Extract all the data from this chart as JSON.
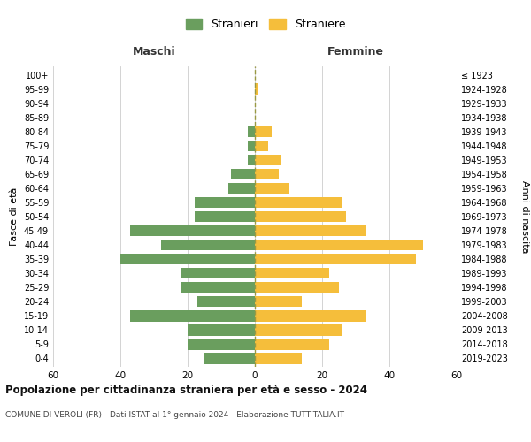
{
  "age_groups": [
    "0-4",
    "5-9",
    "10-14",
    "15-19",
    "20-24",
    "25-29",
    "30-34",
    "35-39",
    "40-44",
    "45-49",
    "50-54",
    "55-59",
    "60-64",
    "65-69",
    "70-74",
    "75-79",
    "80-84",
    "85-89",
    "90-94",
    "95-99",
    "100+"
  ],
  "birth_years": [
    "2019-2023",
    "2014-2018",
    "2009-2013",
    "2004-2008",
    "1999-2003",
    "1994-1998",
    "1989-1993",
    "1984-1988",
    "1979-1983",
    "1974-1978",
    "1969-1973",
    "1964-1968",
    "1959-1963",
    "1954-1958",
    "1949-1953",
    "1944-1948",
    "1939-1943",
    "1934-1938",
    "1929-1933",
    "1924-1928",
    "≤ 1923"
  ],
  "maschi": [
    15,
    20,
    20,
    37,
    17,
    22,
    22,
    40,
    28,
    37,
    18,
    18,
    8,
    7,
    2,
    2,
    2,
    0,
    0,
    0,
    0
  ],
  "femmine": [
    14,
    22,
    26,
    33,
    14,
    25,
    22,
    48,
    50,
    33,
    27,
    26,
    10,
    7,
    8,
    4,
    5,
    0,
    0,
    1,
    0
  ],
  "color_maschi": "#6a9e5e",
  "color_femmine": "#f5be3b",
  "title": "Popolazione per cittadinanza straniera per età e sesso - 2024",
  "subtitle": "COMUNE DI VEROLI (FR) - Dati ISTAT al 1° gennaio 2024 - Elaborazione TUTTITALIA.IT",
  "xlabel_left": "Maschi",
  "xlabel_right": "Femmine",
  "ylabel_left": "Fasce di età",
  "ylabel_right": "Anni di nascita",
  "legend_maschi": "Stranieri",
  "legend_femmine": "Straniere",
  "xlim": 60,
  "bg_color": "#ffffff",
  "grid_color": "#cccccc",
  "dashed_line_color": "#999944"
}
